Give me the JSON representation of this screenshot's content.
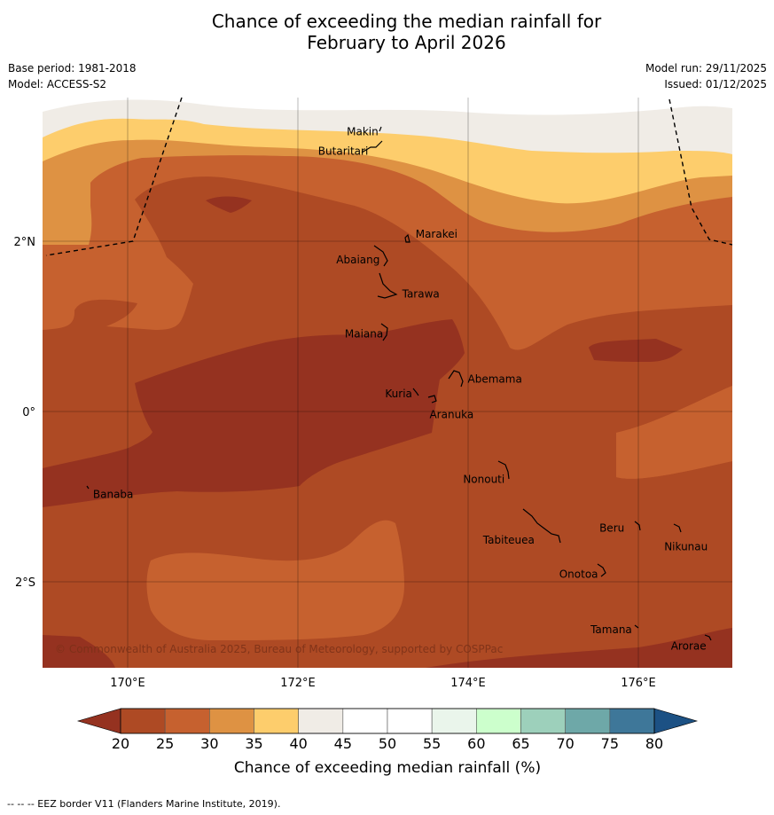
{
  "title_line1": "Chance of exceeding the median rainfall for",
  "title_line2": "February to April 2026",
  "base_period": "Base period: 1981-2018",
  "model": "Model: ACCESS-S2",
  "model_run": "Model run: 29/11/2025",
  "issued": "Issued: 01/12/2025",
  "copyright": "© Commonwealth of Australia 2025, Bureau of Meteorology, supported by COSPPac",
  "footer": "--  --  -- EEZ border V11 (Flanders Marine Institute, 2019).",
  "map": {
    "lon_range": [
      169,
      177.1
    ],
    "lat_range": [
      -3.0,
      3.6
    ],
    "lon_ticks": [
      {
        "value": 170,
        "label": "170°E"
      },
      {
        "value": 172,
        "label": "172°E"
      },
      {
        "value": 174,
        "label": "174°E"
      },
      {
        "value": 176,
        "label": "176°E"
      }
    ],
    "lat_ticks": [
      {
        "value": 2,
        "label": "2°N"
      },
      {
        "value": 0,
        "label": "0°"
      },
      {
        "value": -2,
        "label": "2°S"
      }
    ],
    "places": [
      {
        "name": "Makin",
        "lon": 172.97,
        "lat": 3.33
      },
      {
        "name": "Butaritari",
        "lon": 172.8,
        "lat": 3.1
      },
      {
        "name": "Marakei",
        "lon": 173.32,
        "lat": 2.0
      },
      {
        "name": "Abaiang",
        "lon": 172.93,
        "lat": 1.8
      },
      {
        "name": "Tarawa",
        "lon": 173.1,
        "lat": 1.4
      },
      {
        "name": "Maiana",
        "lon": 173.03,
        "lat": 0.93
      },
      {
        "name": "Abemama",
        "lon": 173.87,
        "lat": 0.4
      },
      {
        "name": "Kuria",
        "lon": 173.4,
        "lat": 0.23
      },
      {
        "name": "Aranuka",
        "lon": 173.63,
        "lat": 0.17
      },
      {
        "name": "Banaba",
        "lon": 169.53,
        "lat": -0.87
      },
      {
        "name": "Nonouti",
        "lon": 174.42,
        "lat": -0.67
      },
      {
        "name": "Tabiteuea",
        "lon": 174.8,
        "lat": -1.3
      },
      {
        "name": "Beru",
        "lon": 175.98,
        "lat": -1.33
      },
      {
        "name": "Nikunau",
        "lon": 176.45,
        "lat": -1.38
      },
      {
        "name": "Onotoa",
        "lon": 175.57,
        "lat": -1.83
      },
      {
        "name": "Tamana",
        "lon": 175.98,
        "lat": -2.5
      },
      {
        "name": "Arorae",
        "lon": 176.82,
        "lat": -2.65
      }
    ]
  },
  "legend": {
    "title": "Chance of exceeding median rainfall (%)",
    "ticks": [
      "20",
      "25",
      "30",
      "35",
      "40",
      "45",
      "50",
      "55",
      "60",
      "65",
      "70",
      "75",
      "80"
    ],
    "colors": [
      "#ae4a24",
      "#c6612f",
      "#de9243",
      "#fdcd6c",
      "#f0ece6",
      "#ffffff",
      "#ffffff",
      "#eaf5eb",
      "#ccffcc",
      "#9dd0bb",
      "#6ea8a8",
      "#3e7799"
    ],
    "under_color": "#953220",
    "over_color": "#1c5184"
  },
  "colors": {
    "band_20_25": "#ae4a24",
    "band_25_30": "#c6612f",
    "band_30_35": "#de9243",
    "band_35_40": "#fdcd6c",
    "band_40_45": "#f0ece6",
    "below_20": "#953220"
  }
}
